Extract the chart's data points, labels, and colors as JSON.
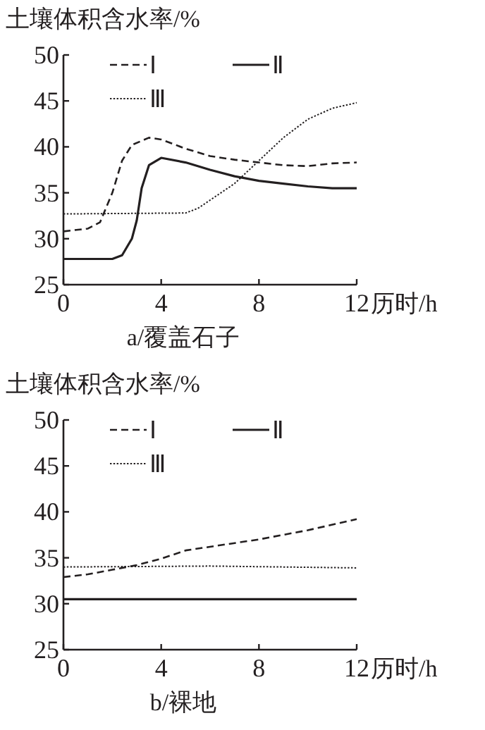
{
  "chart_data": [
    {
      "type": "line",
      "title": "a/覆盖石子",
      "ylabel": "土壤体积含水率/%",
      "xlabel": "历时/h",
      "xlim": [
        0,
        12
      ],
      "xticks": [
        0,
        4,
        8,
        12
      ],
      "ylim": [
        25,
        50
      ],
      "yticks": [
        25,
        30,
        35,
        40,
        45,
        50
      ],
      "legend": "top",
      "grid": false,
      "series": [
        {
          "name": "Ⅰ",
          "color": "#231f20",
          "line_style": "dashed",
          "x": [
            0,
            1,
            1.5,
            2,
            2.4,
            2.8,
            3.5,
            4,
            5,
            6,
            7,
            8,
            9,
            10,
            11,
            12
          ],
          "values": [
            30.8,
            31.1,
            31.8,
            35,
            38.5,
            40.2,
            41,
            40.8,
            39.8,
            39,
            38.6,
            38.3,
            38,
            37.9,
            38.2,
            38.3
          ]
        },
        {
          "name": "Ⅱ",
          "color": "#231f20",
          "line_style": "solid",
          "x": [
            0,
            2,
            2.4,
            2.8,
            3,
            3.2,
            3.5,
            4,
            5,
            6,
            7,
            8,
            9,
            10,
            11,
            12
          ],
          "values": [
            27.8,
            27.8,
            28.2,
            30,
            32,
            35.5,
            38,
            38.8,
            38.3,
            37.5,
            36.8,
            36.3,
            36,
            35.7,
            35.5,
            35.5
          ]
        },
        {
          "name": "Ⅲ",
          "color": "#231f20",
          "line_style": "dotted",
          "x": [
            0,
            5,
            5.5,
            6,
            7,
            8,
            9,
            10,
            11,
            12
          ],
          "values": [
            32.7,
            32.8,
            33.3,
            34.2,
            36,
            38.5,
            41,
            43,
            44.2,
            44.8
          ]
        }
      ]
    },
    {
      "type": "line",
      "title": "b/裸地",
      "ylabel": "土壤体积含水率/%",
      "xlabel": "历时/h",
      "xlim": [
        0,
        12
      ],
      "xticks": [
        0,
        4,
        8,
        12
      ],
      "ylim": [
        25,
        50
      ],
      "yticks": [
        25,
        30,
        35,
        40,
        45,
        50
      ],
      "legend": "top",
      "grid": false,
      "series": [
        {
          "name": "Ⅰ",
          "color": "#231f20",
          "line_style": "dashed",
          "x": [
            0,
            1,
            2,
            3,
            4,
            5,
            6,
            8,
            10,
            12
          ],
          "values": [
            32.9,
            33.2,
            33.7,
            34.2,
            34.9,
            35.8,
            36.2,
            37,
            38,
            39.2
          ]
        },
        {
          "name": "Ⅱ",
          "color": "#231f20",
          "line_style": "solid",
          "x": [
            0,
            12
          ],
          "values": [
            30.5,
            30.5
          ]
        },
        {
          "name": "Ⅲ",
          "color": "#231f20",
          "line_style": "dotted",
          "x": [
            0,
            6,
            12
          ],
          "values": [
            34,
            34.1,
            33.9
          ]
        }
      ]
    }
  ]
}
